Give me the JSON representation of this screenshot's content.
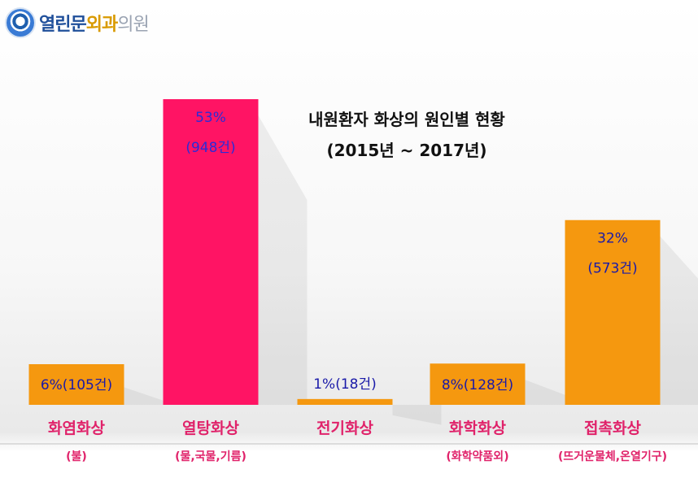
{
  "logo": {
    "text_a": "열린문",
    "text_b": "외과",
    "text_c": "의원",
    "icon": "eye-circle-logo-icon"
  },
  "chart_data": {
    "type": "bar",
    "title": "내원환자 화상의 원인별 현황",
    "subtitle": "(2015년 ~ 2017년)",
    "categories": [
      "화염화상",
      "열탕화상",
      "전기화상",
      "화학화상",
      "접촉화상"
    ],
    "subcategories": [
      "(불)",
      "(물,국물,기름)",
      "",
      "(화학약품외)",
      "(뜨거운물체,온열기구)"
    ],
    "values": [
      105,
      948,
      18,
      128,
      573
    ],
    "percent_labels": [
      "6%(105건)",
      "53%",
      "1%(18건)",
      "8%(128건)",
      "32%"
    ],
    "count_labels": [
      "",
      "(948건)",
      "",
      "",
      "(573건)"
    ],
    "bar_colors": [
      "#f5980f",
      "#ff1464",
      "#f5980f",
      "#f5980f",
      "#f5980f"
    ],
    "label_color": "#1a1aa8",
    "category_color": "#e0226a",
    "ylim": [
      0,
      1000
    ],
    "grid": false,
    "legend": "none"
  }
}
